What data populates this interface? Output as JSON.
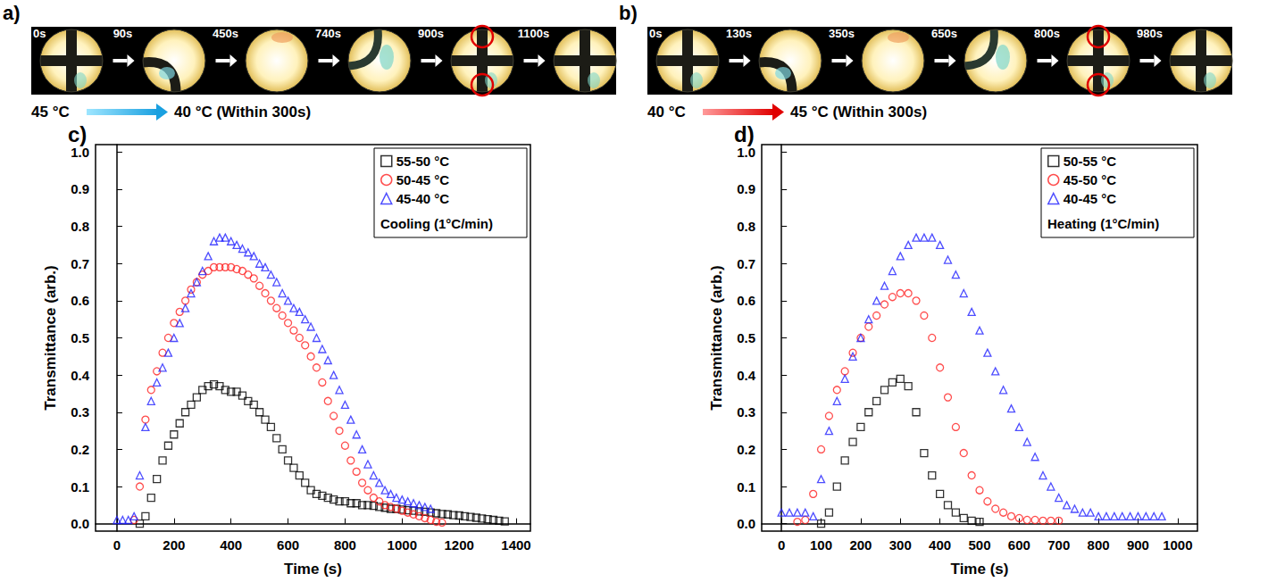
{
  "image_strips": [
    {
      "letter": "a)",
      "times": [
        "0s",
        "90s",
        "450s",
        "740s",
        "900s",
        "1100s"
      ],
      "from": "45 °C",
      "to": "40 °C (Within 300s)"
    },
    {
      "letter": "b)",
      "times": [
        "0s",
        "130s",
        "350s",
        "650s",
        "800s",
        "980s"
      ],
      "from": "40 °C",
      "to": "45 °C (Within 300s)"
    }
  ],
  "chart_data": [
    {
      "panel": "c)",
      "type": "scatter",
      "xlabel": "Time (s)",
      "ylabel": "Transmittance (arb.)",
      "annotation": "Cooling (1°C/min)",
      "legend": "upper right",
      "grid": false,
      "xlim": [
        -75,
        1450
      ],
      "xticks": [
        0,
        200,
        400,
        600,
        800,
        1000,
        1200,
        1400
      ],
      "ylim": [
        -0.02,
        1.02
      ],
      "yticks": [
        {
          "value": 0,
          "label": "0.0"
        },
        0.1,
        0.2,
        0.3,
        0.4,
        0.5,
        0.6,
        0.7,
        0.8,
        0.9,
        {
          "value": 1,
          "label": "1.0"
        }
      ],
      "series": [
        {
          "name": "55-50 °C",
          "color": "#000000",
          "marker": "square",
          "x": [
            80,
            100,
            120,
            140,
            160,
            180,
            200,
            220,
            240,
            260,
            280,
            300,
            320,
            340,
            360,
            380,
            400,
            420,
            440,
            460,
            480,
            500,
            520,
            540,
            560,
            580,
            600,
            620,
            640,
            660,
            680,
            700,
            720,
            740,
            760,
            780,
            800,
            820,
            840,
            860,
            880,
            900,
            920,
            940,
            960,
            980,
            1000,
            1020,
            1040,
            1060,
            1080,
            1100,
            1120,
            1140,
            1160,
            1180,
            1200,
            1220,
            1240,
            1260,
            1280,
            1300,
            1320,
            1340,
            1360
          ],
          "values": [
            0.0,
            0.02,
            0.07,
            0.12,
            0.17,
            0.21,
            0.24,
            0.27,
            0.3,
            0.32,
            0.34,
            0.36,
            0.37,
            0.375,
            0.37,
            0.36,
            0.355,
            0.355,
            0.345,
            0.33,
            0.32,
            0.3,
            0.28,
            0.26,
            0.23,
            0.2,
            0.17,
            0.15,
            0.13,
            0.11,
            0.09,
            0.08,
            0.075,
            0.07,
            0.065,
            0.06,
            0.06,
            0.055,
            0.055,
            0.05,
            0.05,
            0.048,
            0.045,
            0.043,
            0.04,
            0.04,
            0.038,
            0.036,
            0.035,
            0.033,
            0.032,
            0.03,
            0.028,
            0.026,
            0.025,
            0.023,
            0.022,
            0.02,
            0.018,
            0.016,
            0.014,
            0.012,
            0.01,
            0.008,
            0.006
          ]
        },
        {
          "name": "50-45 °C",
          "color": "#ff2020",
          "marker": "circle",
          "x": [
            60,
            80,
            100,
            120,
            140,
            160,
            180,
            200,
            220,
            240,
            260,
            280,
            300,
            320,
            340,
            360,
            380,
            400,
            420,
            440,
            460,
            480,
            500,
            520,
            540,
            560,
            580,
            600,
            620,
            640,
            660,
            680,
            700,
            720,
            740,
            760,
            780,
            800,
            820,
            840,
            860,
            880,
            900,
            920,
            940,
            960,
            980,
            1000,
            1020,
            1040,
            1060,
            1080,
            1100,
            1120,
            1140
          ],
          "values": [
            0.01,
            0.1,
            0.28,
            0.36,
            0.41,
            0.46,
            0.5,
            0.54,
            0.57,
            0.6,
            0.63,
            0.65,
            0.67,
            0.68,
            0.69,
            0.69,
            0.69,
            0.69,
            0.685,
            0.68,
            0.67,
            0.66,
            0.64,
            0.62,
            0.6,
            0.58,
            0.56,
            0.54,
            0.52,
            0.5,
            0.48,
            0.45,
            0.42,
            0.38,
            0.33,
            0.29,
            0.25,
            0.21,
            0.17,
            0.14,
            0.11,
            0.09,
            0.07,
            0.06,
            0.05,
            0.045,
            0.04,
            0.035,
            0.03,
            0.025,
            0.02,
            0.015,
            0.01,
            0.005,
            0.003
          ]
        },
        {
          "name": "45-40 °C",
          "color": "#2020ff",
          "marker": "triangle",
          "x": [
            0,
            20,
            40,
            60,
            80,
            100,
            120,
            140,
            160,
            180,
            200,
            220,
            240,
            260,
            280,
            300,
            320,
            340,
            360,
            380,
            400,
            420,
            440,
            460,
            480,
            500,
            520,
            540,
            560,
            580,
            600,
            620,
            640,
            660,
            680,
            700,
            720,
            740,
            760,
            780,
            800,
            820,
            840,
            860,
            880,
            900,
            920,
            940,
            960,
            980,
            1000,
            1020,
            1040,
            1060,
            1080,
            1100
          ],
          "values": [
            0.01,
            0.01,
            0.01,
            0.02,
            0.13,
            0.26,
            0.33,
            0.38,
            0.42,
            0.46,
            0.5,
            0.54,
            0.58,
            0.62,
            0.65,
            0.68,
            0.72,
            0.76,
            0.77,
            0.77,
            0.76,
            0.75,
            0.74,
            0.73,
            0.72,
            0.7,
            0.69,
            0.67,
            0.65,
            0.62,
            0.6,
            0.58,
            0.57,
            0.55,
            0.53,
            0.5,
            0.47,
            0.44,
            0.4,
            0.36,
            0.32,
            0.28,
            0.24,
            0.2,
            0.16,
            0.13,
            0.11,
            0.09,
            0.08,
            0.07,
            0.065,
            0.06,
            0.055,
            0.05,
            0.045,
            0.04
          ]
        }
      ]
    },
    {
      "panel": "d)",
      "type": "scatter",
      "xlabel": "Time (s)",
      "ylabel": "Transmittance (arb.)",
      "annotation": "Heating (1°C/min)",
      "legend": "upper right",
      "grid": false,
      "xlim": [
        -50,
        1050
      ],
      "xticks": [
        0,
        100,
        200,
        300,
        400,
        500,
        600,
        700,
        800,
        900,
        1000
      ],
      "ylim": [
        -0.02,
        1.02
      ],
      "yticks": [
        {
          "value": 0,
          "label": "0.0"
        },
        0.1,
        0.2,
        0.3,
        0.4,
        0.5,
        0.6,
        0.7,
        0.8,
        0.9,
        {
          "value": 1,
          "label": "1.0"
        }
      ],
      "series": [
        {
          "name": "50-55 °C",
          "color": "#000000",
          "marker": "square",
          "x": [
            100,
            120,
            140,
            160,
            180,
            200,
            220,
            240,
            260,
            280,
            300,
            320,
            340,
            360,
            380,
            400,
            420,
            440,
            460,
            480,
            500
          ],
          "values": [
            0.0,
            0.03,
            0.1,
            0.17,
            0.22,
            0.26,
            0.3,
            0.33,
            0.36,
            0.38,
            0.39,
            0.37,
            0.3,
            0.19,
            0.13,
            0.08,
            0.05,
            0.03,
            0.015,
            0.008,
            0.005
          ]
        },
        {
          "name": "45-50 °C",
          "color": "#ff2020",
          "marker": "circle",
          "x": [
            40,
            60,
            80,
            100,
            120,
            140,
            160,
            180,
            200,
            220,
            240,
            260,
            280,
            300,
            320,
            340,
            360,
            380,
            400,
            420,
            440,
            460,
            480,
            500,
            520,
            540,
            560,
            580,
            600,
            620,
            640,
            660,
            680,
            700
          ],
          "values": [
            0.005,
            0.01,
            0.08,
            0.2,
            0.29,
            0.36,
            0.41,
            0.46,
            0.5,
            0.53,
            0.56,
            0.59,
            0.61,
            0.62,
            0.62,
            0.6,
            0.56,
            0.5,
            0.42,
            0.34,
            0.26,
            0.19,
            0.13,
            0.09,
            0.06,
            0.04,
            0.03,
            0.02,
            0.015,
            0.01,
            0.01,
            0.008,
            0.008,
            0.008
          ]
        },
        {
          "name": "40-45 °C",
          "color": "#2020ff",
          "marker": "triangle",
          "x": [
            0,
            20,
            40,
            60,
            80,
            100,
            120,
            140,
            160,
            180,
            200,
            220,
            240,
            260,
            280,
            300,
            320,
            340,
            360,
            380,
            400,
            420,
            440,
            460,
            480,
            500,
            520,
            540,
            560,
            580,
            600,
            620,
            640,
            660,
            680,
            700,
            720,
            740,
            760,
            780,
            800,
            820,
            840,
            860,
            880,
            900,
            920,
            940,
            960
          ],
          "values": [
            0.03,
            0.03,
            0.03,
            0.03,
            0.02,
            0.12,
            0.25,
            0.33,
            0.39,
            0.45,
            0.5,
            0.55,
            0.6,
            0.64,
            0.68,
            0.72,
            0.75,
            0.77,
            0.77,
            0.77,
            0.75,
            0.71,
            0.67,
            0.62,
            0.57,
            0.52,
            0.46,
            0.41,
            0.36,
            0.31,
            0.26,
            0.22,
            0.18,
            0.13,
            0.1,
            0.07,
            0.05,
            0.04,
            0.03,
            0.03,
            0.02,
            0.02,
            0.02,
            0.02,
            0.02,
            0.02,
            0.02,
            0.02,
            0.02
          ]
        }
      ]
    }
  ]
}
